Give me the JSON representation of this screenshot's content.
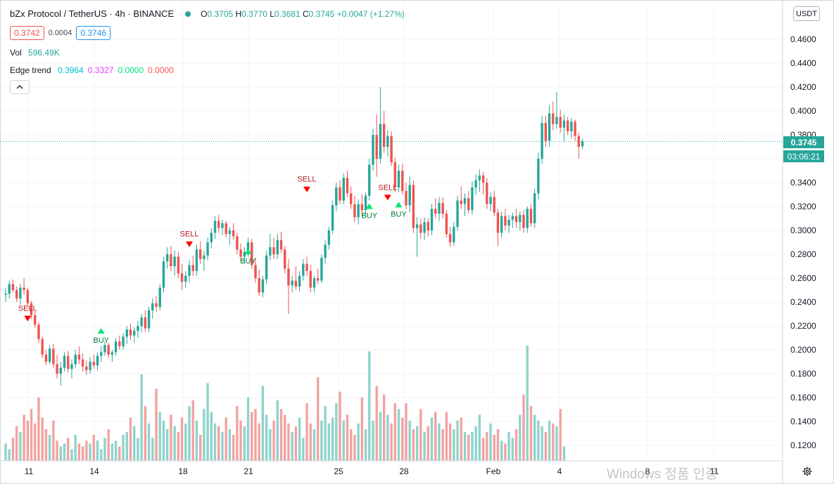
{
  "symbol": {
    "title": "bZx Protocol / TetherUS · 4h · BINANCE",
    "open_label": "O",
    "open": "0.3705",
    "high_label": "H",
    "high": "0.3770",
    "low_label": "L",
    "low": "0.3681",
    "close_label": "C",
    "close": "0.3745",
    "change": "+0.0047 (+1.27%)"
  },
  "trade": {
    "sell_price": "0.3742",
    "spread": "0.0004",
    "buy_price": "0.3746"
  },
  "volume": {
    "label": "Vol",
    "value": "596.49K"
  },
  "indicator": {
    "name": "Edge trend",
    "values": [
      {
        "text": "0.3964",
        "color": "#00bcd4"
      },
      {
        "text": "0.3327",
        "color": "#e040fb"
      },
      {
        "text": "0.0000",
        "color": "#00e676"
      },
      {
        "text": "0.0000",
        "color": "#ff5252"
      }
    ]
  },
  "currency_label": "USDT",
  "last_price_label": "0.3745",
  "countdown": "03:06:21",
  "watermark": "Windows 정품 인증",
  "icons": {
    "settings": "gear-icon",
    "collapse": "chevron-up-icon",
    "status": "status-dot"
  },
  "colors": {
    "up": "#26a69a",
    "down": "#ef5350",
    "up_volume": "#8fd3cb",
    "down_volume": "#f2a3a1",
    "buy_signal": "#00e676",
    "buy_text": "#007a33",
    "sell_signal": "#ff0000",
    "sell_text": "#b71c1c"
  },
  "chart_data": {
    "type": "candlestick",
    "timeframe": "4h",
    "ylim": [
      0.1,
      0.47
    ],
    "y_ticks": [
      "0.4600",
      "0.4400",
      "0.4200",
      "0.4000",
      "0.3800",
      "0.3600",
      "0.3400",
      "0.3200",
      "0.3000",
      "0.2800",
      "0.2600",
      "0.2400",
      "0.2200",
      "0.2000",
      "0.1800",
      "0.1600",
      "0.1400",
      "0.1200"
    ],
    "x_tick_labels": [
      "11",
      "14",
      "18",
      "21",
      "25",
      "28",
      "Feb",
      "4",
      "8",
      "11"
    ],
    "grid": true,
    "last_price": 0.3745,
    "ohlc": [
      [
        0.246,
        0.252,
        0.24,
        0.247
      ],
      [
        0.247,
        0.258,
        0.243,
        0.255
      ],
      [
        0.255,
        0.259,
        0.248,
        0.25
      ],
      [
        0.25,
        0.253,
        0.24,
        0.243
      ],
      [
        0.243,
        0.255,
        0.238,
        0.252
      ],
      [
        0.252,
        0.26,
        0.246,
        0.25
      ],
      [
        0.25,
        0.252,
        0.236,
        0.239
      ],
      [
        0.239,
        0.241,
        0.226,
        0.229
      ],
      [
        0.229,
        0.232,
        0.218,
        0.221
      ],
      [
        0.221,
        0.223,
        0.206,
        0.209
      ],
      [
        0.209,
        0.211,
        0.193,
        0.196
      ],
      [
        0.196,
        0.2,
        0.187,
        0.19
      ],
      [
        0.19,
        0.204,
        0.188,
        0.201
      ],
      [
        0.201,
        0.205,
        0.185,
        0.188
      ],
      [
        0.188,
        0.196,
        0.176,
        0.18
      ],
      [
        0.18,
        0.19,
        0.17,
        0.185
      ],
      [
        0.185,
        0.198,
        0.182,
        0.195
      ],
      [
        0.195,
        0.199,
        0.181,
        0.184
      ],
      [
        0.184,
        0.192,
        0.176,
        0.188
      ],
      [
        0.188,
        0.2,
        0.185,
        0.196
      ],
      [
        0.196,
        0.203,
        0.188,
        0.192
      ],
      [
        0.192,
        0.197,
        0.182,
        0.186
      ],
      [
        0.186,
        0.191,
        0.179,
        0.183
      ],
      [
        0.183,
        0.194,
        0.18,
        0.19
      ],
      [
        0.19,
        0.196,
        0.184,
        0.187
      ],
      [
        0.187,
        0.198,
        0.183,
        0.195
      ],
      [
        0.195,
        0.203,
        0.19,
        0.198
      ],
      [
        0.198,
        0.207,
        0.195,
        0.204
      ],
      [
        0.204,
        0.206,
        0.193,
        0.196
      ],
      [
        0.196,
        0.2,
        0.19,
        0.198
      ],
      [
        0.198,
        0.21,
        0.195,
        0.207
      ],
      [
        0.207,
        0.212,
        0.2,
        0.203
      ],
      [
        0.203,
        0.214,
        0.2,
        0.211
      ],
      [
        0.211,
        0.22,
        0.205,
        0.217
      ],
      [
        0.217,
        0.222,
        0.208,
        0.212
      ],
      [
        0.212,
        0.219,
        0.206,
        0.216
      ],
      [
        0.216,
        0.224,
        0.21,
        0.22
      ],
      [
        0.22,
        0.23,
        0.215,
        0.227
      ],
      [
        0.227,
        0.233,
        0.215,
        0.218
      ],
      [
        0.218,
        0.236,
        0.215,
        0.233
      ],
      [
        0.233,
        0.243,
        0.226,
        0.239
      ],
      [
        0.239,
        0.245,
        0.232,
        0.236
      ],
      [
        0.236,
        0.255,
        0.233,
        0.252
      ],
      [
        0.252,
        0.278,
        0.248,
        0.274
      ],
      [
        0.274,
        0.286,
        0.268,
        0.28
      ],
      [
        0.28,
        0.287,
        0.266,
        0.27
      ],
      [
        0.27,
        0.283,
        0.262,
        0.278
      ],
      [
        0.278,
        0.282,
        0.26,
        0.264
      ],
      [
        0.264,
        0.272,
        0.25,
        0.257
      ],
      [
        0.257,
        0.266,
        0.252,
        0.262
      ],
      [
        0.262,
        0.275,
        0.256,
        0.271
      ],
      [
        0.271,
        0.279,
        0.262,
        0.266
      ],
      [
        0.266,
        0.288,
        0.262,
        0.284
      ],
      [
        0.284,
        0.291,
        0.272,
        0.276
      ],
      [
        0.276,
        0.283,
        0.266,
        0.279
      ],
      [
        0.279,
        0.294,
        0.275,
        0.29
      ],
      [
        0.29,
        0.302,
        0.285,
        0.298
      ],
      [
        0.298,
        0.312,
        0.293,
        0.308
      ],
      [
        0.308,
        0.313,
        0.298,
        0.302
      ],
      [
        0.302,
        0.309,
        0.296,
        0.306
      ],
      [
        0.306,
        0.308,
        0.294,
        0.297
      ],
      [
        0.297,
        0.303,
        0.288,
        0.3
      ],
      [
        0.3,
        0.306,
        0.292,
        0.295
      ],
      [
        0.295,
        0.298,
        0.28,
        0.284
      ],
      [
        0.284,
        0.289,
        0.274,
        0.278
      ],
      [
        0.278,
        0.286,
        0.272,
        0.282
      ],
      [
        0.282,
        0.294,
        0.278,
        0.29
      ],
      [
        0.29,
        0.293,
        0.268,
        0.271
      ],
      [
        0.271,
        0.277,
        0.256,
        0.26
      ],
      [
        0.26,
        0.267,
        0.245,
        0.248
      ],
      [
        0.248,
        0.262,
        0.244,
        0.259
      ],
      [
        0.259,
        0.283,
        0.255,
        0.279
      ],
      [
        0.279,
        0.297,
        0.275,
        0.286
      ],
      [
        0.286,
        0.294,
        0.276,
        0.28
      ],
      [
        0.28,
        0.297,
        0.276,
        0.292
      ],
      [
        0.292,
        0.299,
        0.281,
        0.284
      ],
      [
        0.284,
        0.287,
        0.264,
        0.268
      ],
      [
        0.268,
        0.276,
        0.23,
        0.254
      ],
      [
        0.254,
        0.262,
        0.248,
        0.258
      ],
      [
        0.258,
        0.27,
        0.25,
        0.253
      ],
      [
        0.253,
        0.266,
        0.249,
        0.262
      ],
      [
        0.262,
        0.276,
        0.258,
        0.272
      ],
      [
        0.272,
        0.278,
        0.262,
        0.266
      ],
      [
        0.266,
        0.271,
        0.248,
        0.252
      ],
      [
        0.252,
        0.262,
        0.248,
        0.26
      ],
      [
        0.26,
        0.268,
        0.255,
        0.258
      ],
      [
        0.258,
        0.28,
        0.256,
        0.277
      ],
      [
        0.277,
        0.292,
        0.272,
        0.288
      ],
      [
        0.288,
        0.303,
        0.284,
        0.3
      ],
      [
        0.3,
        0.325,
        0.297,
        0.321
      ],
      [
        0.321,
        0.34,
        0.316,
        0.336
      ],
      [
        0.336,
        0.342,
        0.322,
        0.325
      ],
      [
        0.325,
        0.348,
        0.322,
        0.344
      ],
      [
        0.344,
        0.35,
        0.328,
        0.331
      ],
      [
        0.331,
        0.337,
        0.318,
        0.322
      ],
      [
        0.322,
        0.329,
        0.307,
        0.311
      ],
      [
        0.311,
        0.326,
        0.305,
        0.322
      ],
      [
        0.322,
        0.33,
        0.312,
        0.317
      ],
      [
        0.317,
        0.332,
        0.313,
        0.329
      ],
      [
        0.329,
        0.36,
        0.325,
        0.355
      ],
      [
        0.355,
        0.385,
        0.35,
        0.38
      ],
      [
        0.38,
        0.397,
        0.345,
        0.36
      ],
      [
        0.36,
        0.42,
        0.356,
        0.389
      ],
      [
        0.389,
        0.4,
        0.365,
        0.37
      ],
      [
        0.37,
        0.384,
        0.362,
        0.379
      ],
      [
        0.379,
        0.383,
        0.354,
        0.357
      ],
      [
        0.357,
        0.361,
        0.332,
        0.336
      ],
      [
        0.336,
        0.355,
        0.332,
        0.35
      ],
      [
        0.35,
        0.356,
        0.33,
        0.333
      ],
      [
        0.333,
        0.34,
        0.318,
        0.321
      ],
      [
        0.321,
        0.345,
        0.315,
        0.338
      ],
      [
        0.338,
        0.342,
        0.298,
        0.302
      ],
      [
        0.302,
        0.311,
        0.278,
        0.305
      ],
      [
        0.305,
        0.31,
        0.293,
        0.298
      ],
      [
        0.298,
        0.311,
        0.292,
        0.307
      ],
      [
        0.307,
        0.31,
        0.295,
        0.3
      ],
      [
        0.3,
        0.322,
        0.296,
        0.318
      ],
      [
        0.318,
        0.327,
        0.31,
        0.314
      ],
      [
        0.314,
        0.328,
        0.308,
        0.323
      ],
      [
        0.323,
        0.328,
        0.31,
        0.314
      ],
      [
        0.314,
        0.317,
        0.294,
        0.297
      ],
      [
        0.297,
        0.303,
        0.286,
        0.29
      ],
      [
        0.29,
        0.307,
        0.287,
        0.303
      ],
      [
        0.303,
        0.329,
        0.3,
        0.325
      ],
      [
        0.325,
        0.337,
        0.318,
        0.322
      ],
      [
        0.322,
        0.331,
        0.312,
        0.327
      ],
      [
        0.327,
        0.333,
        0.314,
        0.317
      ],
      [
        0.317,
        0.341,
        0.313,
        0.336
      ],
      [
        0.336,
        0.347,
        0.33,
        0.342
      ],
      [
        0.342,
        0.351,
        0.332,
        0.346
      ],
      [
        0.346,
        0.349,
        0.33,
        0.34
      ],
      [
        0.34,
        0.344,
        0.318,
        0.322
      ],
      [
        0.322,
        0.332,
        0.316,
        0.328
      ],
      [
        0.328,
        0.333,
        0.312,
        0.315
      ],
      [
        0.315,
        0.318,
        0.287,
        0.298
      ],
      [
        0.298,
        0.316,
        0.294,
        0.312
      ],
      [
        0.312,
        0.318,
        0.3,
        0.304
      ],
      [
        0.304,
        0.313,
        0.298,
        0.309
      ],
      [
        0.309,
        0.315,
        0.302,
        0.312
      ],
      [
        0.312,
        0.318,
        0.302,
        0.307
      ],
      [
        0.307,
        0.316,
        0.3,
        0.313
      ],
      [
        0.313,
        0.317,
        0.298,
        0.302
      ],
      [
        0.302,
        0.32,
        0.298,
        0.318
      ],
      [
        0.318,
        0.322,
        0.303,
        0.306
      ],
      [
        0.306,
        0.335,
        0.302,
        0.331
      ],
      [
        0.331,
        0.365,
        0.326,
        0.36
      ],
      [
        0.36,
        0.396,
        0.356,
        0.39
      ],
      [
        0.39,
        0.396,
        0.37,
        0.375
      ],
      [
        0.375,
        0.405,
        0.37,
        0.398
      ],
      [
        0.398,
        0.408,
        0.384,
        0.389
      ],
      [
        0.389,
        0.416,
        0.385,
        0.395
      ],
      [
        0.395,
        0.401,
        0.382,
        0.386
      ],
      [
        0.386,
        0.397,
        0.374,
        0.392
      ],
      [
        0.392,
        0.395,
        0.38,
        0.383
      ],
      [
        0.383,
        0.394,
        0.377,
        0.391
      ],
      [
        0.391,
        0.393,
        0.375,
        0.379
      ],
      [
        0.379,
        0.382,
        0.36,
        0.37
      ],
      [
        0.3705,
        0.377,
        0.3681,
        0.3745
      ]
    ],
    "volume": [
      0.6,
      0.4,
      0.8,
      1.2,
      1.0,
      1.6,
      1.4,
      1.8,
      1.3,
      2.2,
      1.5,
      1.1,
      0.9,
      1.4,
      0.7,
      0.5,
      0.6,
      0.8,
      0.4,
      0.9,
      0.6,
      0.5,
      0.7,
      0.6,
      0.9,
      0.7,
      0.4,
      0.8,
      1.1,
      0.6,
      0.7,
      0.5,
      0.9,
      1.0,
      1.5,
      1.2,
      0.8,
      3.0,
      1.9,
      1.3,
      0.8,
      2.5,
      1.7,
      1.4,
      1.1,
      1.6,
      1.2,
      1.0,
      1.5,
      1.3,
      1.9,
      2.1,
      1.4,
      0.9,
      1.8,
      2.7,
      1.7,
      1.3,
      1.2,
      1.0,
      1.5,
      1.1,
      0.9,
      1.9,
      1.4,
      1.2,
      2.2,
      1.7,
      1.8,
      1.3,
      2.6,
      1.6,
      1.1,
      1.4,
      2.1,
      1.8,
      1.6,
      1.3,
      1.0,
      1.2,
      1.5,
      0.8,
      2.0,
      1.3,
      1.1,
      2.9,
      1.4,
      1.9,
      1.3,
      1.5,
      2.0,
      2.4,
      1.4,
      1.6,
      1.1,
      0.9,
      1.3,
      2.2,
      1.1,
      3.8,
      1.4,
      2.6,
      1.7,
      2.3,
      1.6,
      1.3,
      2.0,
      1.8,
      1.5,
      2.0,
      1.4,
      1.1,
      1.2,
      1.8,
      1.0,
      1.2,
      1.5,
      1.7,
      1.3,
      1.1,
      1.7,
      1.3,
      1.1,
      1.4,
      1.5,
      1.0,
      0.9,
      1.0,
      1.2,
      1.6,
      0.8,
      1.0,
      1.3,
      0.9,
      1.1,
      0.7,
      0.6,
      1.0,
      0.8,
      1.1,
      1.6,
      2.3,
      4.0,
      1.9,
      1.6,
      1.4,
      1.2,
      1.0,
      1.4,
      1.3,
      1.2,
      1.8,
      0.5
    ],
    "volume_axis_max": 4.0,
    "signals": [
      {
        "type": "SELL",
        "bar": 6,
        "price": 0.2256
      },
      {
        "type": "BUY",
        "bar": 26,
        "price": 0.2154
      },
      {
        "type": "SELL",
        "bar": 50,
        "price": 0.2878
      },
      {
        "type": "BUY",
        "bar": 66,
        "price": 0.2818
      },
      {
        "type": "SELL",
        "bar": 82,
        "price": 0.3337
      },
      {
        "type": "BUY",
        "bar": 99,
        "price": 0.3197
      },
      {
        "type": "SELL",
        "bar": 104,
        "price": 0.3269
      },
      {
        "type": "BUY",
        "bar": 107,
        "price": 0.321
      }
    ]
  }
}
